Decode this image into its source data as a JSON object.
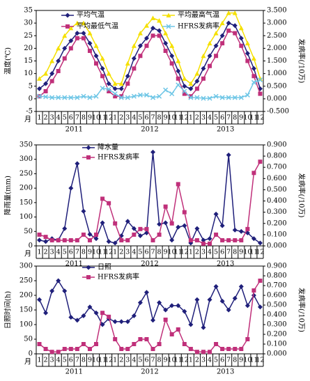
{
  "chart_data": [
    {
      "type": "line",
      "ylabel": "温度(℃)",
      "y2label": "发病率(/10万)",
      "x_label": "月",
      "categories": [
        "1",
        "2",
        "3",
        "4",
        "5",
        "6",
        "7",
        "8",
        "9",
        "10",
        "11",
        "12",
        "1",
        "2",
        "3",
        "4",
        "5",
        "6",
        "7",
        "8",
        "9",
        "10",
        "11",
        "12",
        "1",
        "2",
        "3",
        "4",
        "5",
        "6",
        "7",
        "8",
        "9",
        "10",
        "11",
        "12"
      ],
      "years": [
        "2011",
        "2012",
        "2013"
      ],
      "ylim": [
        -5,
        35
      ],
      "yticks": [
        -5,
        0,
        5,
        10,
        15,
        20,
        25,
        30,
        35
      ],
      "y2lim": [
        -0.5,
        3.5
      ],
      "y2ticks": [
        {
          "value": -0.5,
          "label": "-0.500"
        },
        {
          "value": 0,
          "label": "0.000"
        },
        {
          "value": 0.5,
          "label": "0.500"
        },
        {
          "value": 1,
          "label": "1.000"
        },
        {
          "value": 1.5,
          "label": "1.500"
        },
        {
          "value": 2,
          "label": "2.000"
        },
        {
          "value": 2.5,
          "label": "2.500"
        },
        {
          "value": 3,
          "label": "3.000"
        },
        {
          "value": 3.5,
          "label": "3.500"
        }
      ],
      "series": [
        {
          "name": "平均气温",
          "color": "#1f1f7a",
          "marker": "diamond",
          "values": [
            4,
            6,
            10,
            15,
            20,
            23,
            26,
            26,
            22,
            17,
            12,
            6,
            4,
            4,
            9,
            16,
            21,
            24,
            28,
            27,
            22,
            17,
            11,
            5,
            4,
            7,
            12,
            17,
            21,
            25,
            30,
            29,
            24,
            18,
            12,
            4
          ]
        },
        {
          "name": "平均最高气温",
          "color": "#f5e000",
          "marker": "triangle",
          "values": [
            8,
            10,
            15,
            20,
            25,
            28,
            30,
            30,
            26,
            21,
            16,
            10,
            6,
            6,
            14,
            21,
            26,
            29,
            32,
            31,
            26,
            21,
            15,
            8,
            6,
            10,
            17,
            22,
            26,
            30,
            34,
            34,
            28,
            22,
            16,
            8
          ]
        },
        {
          "name": "平均最低气温",
          "color": "#c0307a",
          "marker": "square",
          "values": [
            1,
            3,
            7,
            11,
            16,
            20,
            24,
            24,
            19,
            14,
            9,
            3,
            1,
            1,
            6,
            12,
            17,
            21,
            25,
            25,
            19,
            14,
            8,
            2,
            1,
            4,
            8,
            13,
            17,
            22,
            27,
            26,
            21,
            15,
            9,
            2
          ]
        },
        {
          "name": "HFRS发病率",
          "color": "#6ec6e6",
          "marker": "cross",
          "axis": "y2",
          "values": [
            0.1,
            0.08,
            0.05,
            0.05,
            0.05,
            0.05,
            0.05,
            0.1,
            0.05,
            0.1,
            0.42,
            0.38,
            0.2,
            0.05,
            0.05,
            0.1,
            0.15,
            0.15,
            0.05,
            0.1,
            0.35,
            0.2,
            0.55,
            0.3,
            0.05,
            0.05,
            0.02,
            0.02,
            0.1,
            0.05,
            0.05,
            0.05,
            0.05,
            0.15,
            0.65,
            0.75
          ]
        }
      ]
    },
    {
      "type": "line",
      "ylabel": "降雨量(mm)",
      "y2label": "发病率(/10万)",
      "x_label": "月",
      "categories": [
        "1",
        "2",
        "3",
        "4",
        "5",
        "6",
        "7",
        "8",
        "9",
        "10",
        "11",
        "12",
        "1",
        "2",
        "3",
        "4",
        "5",
        "6",
        "7",
        "8",
        "9",
        "10",
        "11",
        "12",
        "1",
        "2",
        "3",
        "4",
        "5",
        "6",
        "7",
        "8",
        "9",
        "10",
        "11",
        "12"
      ],
      "years": [
        "2011",
        "2012",
        "2013"
      ],
      "ylim": [
        0,
        350
      ],
      "yticks": [
        0,
        50,
        100,
        150,
        200,
        250,
        300,
        350
      ],
      "y2lim": [
        0,
        0.9
      ],
      "y2ticks": [
        {
          "value": 0,
          "label": "0.000"
        },
        {
          "value": 0.1,
          "label": "0.100"
        },
        {
          "value": 0.2,
          "label": "0.200"
        },
        {
          "value": 0.3,
          "label": "0.300"
        },
        {
          "value": 0.4,
          "label": "0.400"
        },
        {
          "value": 0.5,
          "label": "0.500"
        },
        {
          "value": 0.6,
          "label": "0.600"
        },
        {
          "value": 0.7,
          "label": "0.700"
        },
        {
          "value": 0.8,
          "label": "0.800"
        },
        {
          "value": 0.9,
          "label": "0.900"
        }
      ],
      "series": [
        {
          "name": "降水量",
          "color": "#1f1f7a",
          "marker": "diamond",
          "values": [
            20,
            15,
            25,
            20,
            60,
            200,
            285,
            120,
            40,
            25,
            80,
            15,
            10,
            35,
            85,
            60,
            35,
            45,
            325,
            75,
            80,
            20,
            65,
            70,
            10,
            60,
            20,
            25,
            110,
            70,
            315,
            55,
            50,
            45,
            25,
            10
          ]
        },
        {
          "name": "HFRS发病率",
          "color": "#c0307a",
          "marker": "square",
          "axis": "y2",
          "values": [
            0.1,
            0.08,
            0.05,
            0.05,
            0.05,
            0.05,
            0.05,
            0.1,
            0.05,
            0.1,
            0.42,
            0.38,
            0.2,
            0.05,
            0.05,
            0.1,
            0.15,
            0.15,
            0.05,
            0.1,
            0.35,
            0.2,
            0.55,
            0.3,
            0.05,
            0.05,
            0.02,
            0.02,
            0.1,
            0.05,
            0.05,
            0.05,
            0.05,
            0.15,
            0.65,
            0.75
          ]
        }
      ]
    },
    {
      "type": "line",
      "ylabel": "日照时间(h)",
      "y2label": "发病率(/10万)",
      "x_label": "月",
      "categories": [
        "1",
        "2",
        "3",
        "4",
        "5",
        "6",
        "7",
        "8",
        "9",
        "10",
        "11",
        "12",
        "1",
        "2",
        "3",
        "4",
        "5",
        "6",
        "7",
        "8",
        "9",
        "10",
        "11",
        "12",
        "1",
        "2",
        "3",
        "4",
        "5",
        "6",
        "7",
        "8",
        "9",
        "10",
        "11",
        "12"
      ],
      "years": [
        "2011",
        "2012",
        "2013"
      ],
      "ylim": [
        0,
        300
      ],
      "yticks": [
        0,
        50,
        100,
        150,
        200,
        250,
        300
      ],
      "y2lim": [
        0,
        0.9
      ],
      "y2ticks": [
        {
          "value": 0,
          "label": "0.000"
        },
        {
          "value": 0.1,
          "label": "0.100"
        },
        {
          "value": 0.2,
          "label": "0.200"
        },
        {
          "value": 0.3,
          "label": "0.300"
        },
        {
          "value": 0.4,
          "label": "0.400"
        },
        {
          "value": 0.5,
          "label": "0.500"
        },
        {
          "value": 0.6,
          "label": "0.600"
        },
        {
          "value": 0.7,
          "label": "0.700"
        },
        {
          "value": 0.8,
          "label": "0.800"
        },
        {
          "value": 0.9,
          "label": "0.900"
        }
      ],
      "series": [
        {
          "name": "日照",
          "color": "#1f1f7a",
          "marker": "diamond",
          "values": [
            185,
            140,
            215,
            250,
            215,
            125,
            115,
            130,
            160,
            140,
            100,
            120,
            110,
            110,
            110,
            130,
            175,
            210,
            115,
            175,
            150,
            165,
            165,
            145,
            100,
            185,
            90,
            185,
            230,
            180,
            150,
            190,
            230,
            165,
            200,
            160
          ]
        },
        {
          "name": "HFRS发病率",
          "color": "#c0307a",
          "marker": "square",
          "axis": "y2",
          "values": [
            0.1,
            0.05,
            0.02,
            0.02,
            0.05,
            0.05,
            0.05,
            0.1,
            0.05,
            0.1,
            0.42,
            0.38,
            0.15,
            0.05,
            0.05,
            0.1,
            0.15,
            0.15,
            0.05,
            0.1,
            0.35,
            0.2,
            0.25,
            0.1,
            0.05,
            0.02,
            0.02,
            0.02,
            0.1,
            0.05,
            0.05,
            0.05,
            0.05,
            0.15,
            0.65,
            0.75
          ]
        }
      ]
    }
  ]
}
